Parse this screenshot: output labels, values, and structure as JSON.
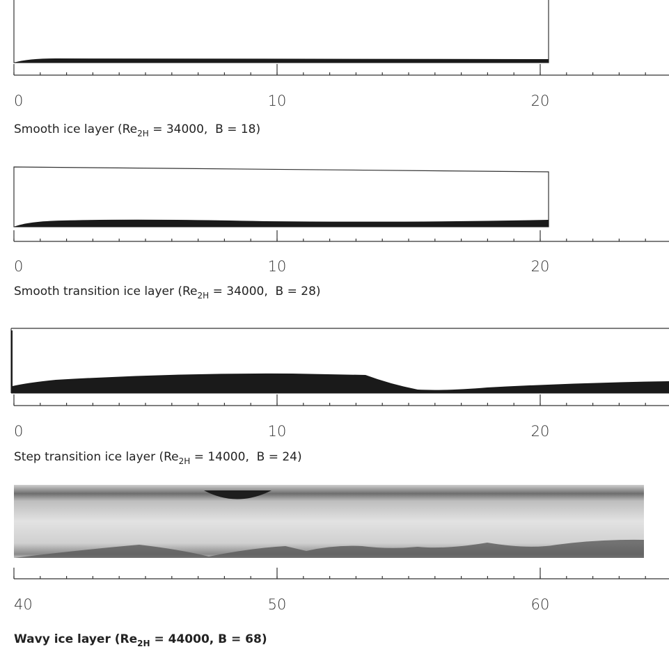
{
  "panels": [
    {
      "caption": {
        "prefix": "Smooth ice layer (Re",
        "subscript": "2H",
        "suffix": " = 34000,  B = 18)"
      },
      "axis_ticks": [
        0,
        10,
        20
      ]
    },
    {
      "caption": {
        "prefix": "Smooth transition ice layer (Re",
        "subscript": "2H",
        "suffix": " = 34000,  B = 28)"
      },
      "axis_ticks": [
        0,
        10,
        20
      ]
    },
    {
      "caption": {
        "prefix": "Step transition ice layer (Re",
        "subscript": "2H",
        "suffix": " = 14000,  B = 24)"
      },
      "axis_ticks": [
        0,
        10,
        20
      ]
    },
    {
      "caption": {
        "prefix": "Wavy ice layer (Re",
        "subscript": "2H",
        "suffix": " = 44000, B = 68)"
      },
      "axis_ticks": [
        40,
        50,
        60
      ]
    }
  ]
}
